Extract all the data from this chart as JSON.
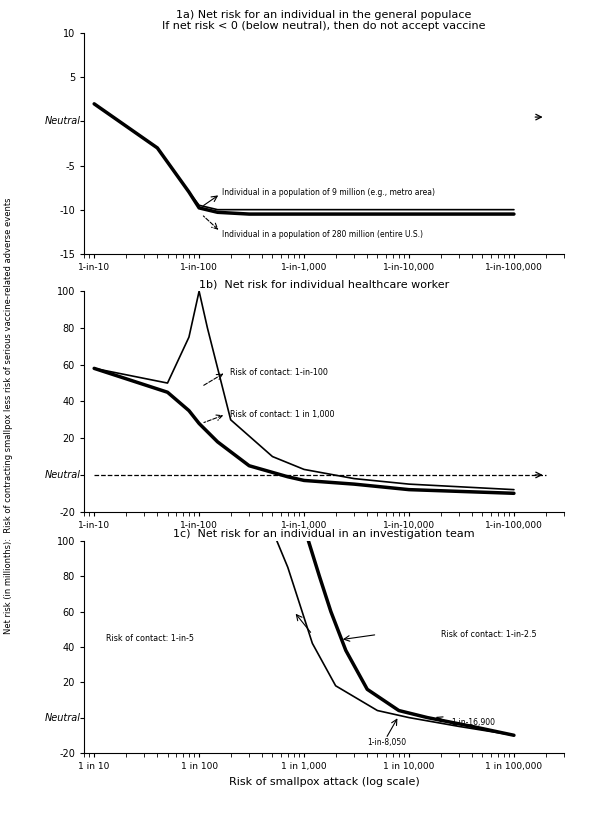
{
  "panel_a": {
    "title": "1a) Net risk for an individual in the general populace",
    "subtitle": "If net risk < 0 (below neutral), then do not accept vaccine",
    "ylim": [
      -15,
      10
    ],
    "yticks": [
      -15,
      -10,
      -5,
      0,
      5,
      10
    ],
    "ytick_labels": [
      "-15",
      "-10",
      "-5",
      "",
      "5",
      "10"
    ],
    "xlim_log": [
      8,
      300000
    ],
    "xticks": [
      10,
      100,
      1000,
      10000,
      100000
    ],
    "xtick_labels": [
      "1-in-10",
      "1-in-100",
      "1-in-1,000",
      "1-in-10,000",
      "1-in-100,000"
    ],
    "line_9mil_x": [
      10,
      40,
      80,
      100,
      150,
      300,
      1000,
      10000,
      100000
    ],
    "line_9mil_y": [
      2.0,
      -3.0,
      -8.0,
      -9.5,
      -10.0,
      -10.0,
      -10.0,
      -10.0,
      -10.0
    ],
    "line_9mil_lw": 1.2,
    "line_280mil_x": [
      10,
      40,
      80,
      100,
      150,
      300,
      1000,
      10000,
      100000
    ],
    "line_280mil_y": [
      2.0,
      -3.0,
      -8.0,
      -9.8,
      -10.3,
      -10.5,
      -10.5,
      -10.5,
      -10.5
    ],
    "line_280mil_lw": 2.5,
    "neutral_y": 0,
    "label_9mil": "Individual in a population of 9 million (e.g., metro area)",
    "label_280mil": "Individual in a population of 280 million (entire U.S.)"
  },
  "panel_b": {
    "title": "1b)  Net risk for individual healthcare worker",
    "ylim": [
      -20,
      100
    ],
    "yticks": [
      -20,
      0,
      20,
      40,
      60,
      80,
      100
    ],
    "ytick_labels": [
      "-20",
      "",
      "20",
      "40",
      "60",
      "80",
      "100"
    ],
    "xlim_log": [
      8,
      300000
    ],
    "xticks": [
      10,
      100,
      1000,
      10000,
      100000
    ],
    "xtick_labels": [
      "1-in-10",
      "1-in-100",
      "1-in-1,000",
      "1-in-10,000",
      "1-in-100,000"
    ],
    "line_c100_x": [
      10,
      50,
      80,
      100,
      120,
      200,
      500,
      1000,
      3000,
      10000,
      100000
    ],
    "line_c100_y": [
      58,
      50,
      75,
      100,
      80,
      30,
      10,
      3,
      -2,
      -5,
      -8
    ],
    "line_c100_lw": 1.2,
    "line_c1000_x": [
      10,
      50,
      80,
      100,
      150,
      300,
      700,
      1000,
      3000,
      10000,
      100000
    ],
    "line_c1000_y": [
      58,
      45,
      35,
      28,
      18,
      5,
      -1,
      -3,
      -5,
      -8,
      -10
    ],
    "line_c1000_lw": 2.5,
    "neutral_y": 0,
    "label_c100": "Risk of contact: 1-in-100",
    "label_c1000": "Risk of contact: 1 in 1,000"
  },
  "panel_c": {
    "title": "1c)  Net risk for an individual in an investigation team",
    "ylim": [
      -20,
      100
    ],
    "yticks": [
      -20,
      0,
      20,
      40,
      60,
      80,
      100
    ],
    "ytick_labels": [
      "-20",
      "",
      "20",
      "40",
      "60",
      "80",
      "100"
    ],
    "xlim_log": [
      8,
      300000
    ],
    "xticks": [
      10,
      100,
      1000,
      10000,
      100000
    ],
    "xtick_labels": [
      "1 in 10",
      "1 in 100",
      "1 in 1,000",
      "1 in 10,000",
      "1 in 100,000"
    ],
    "line_c5_x": [
      550,
      700,
      900,
      1200,
      2000,
      5000,
      10000,
      30000,
      100000
    ],
    "line_c5_y": [
      100,
      85,
      65,
      42,
      18,
      4,
      0,
      -5,
      -10
    ],
    "line_c5_lw": 1.2,
    "line_c25_x": [
      1100,
      1400,
      1800,
      2500,
      4000,
      8000,
      15000,
      40000,
      100000
    ],
    "line_c25_y": [
      100,
      80,
      60,
      38,
      16,
      4,
      0,
      -5,
      -10
    ],
    "line_c25_lw": 2.5,
    "neutral_y": 0,
    "label_c5": "Risk of contact: 1-in-5",
    "label_c25": "Risk of contact: 1-in-2.5",
    "label_8050": "1-in-8,050",
    "label_16900": "1-in-16,900",
    "xlabel": "Risk of smallpox attack (log scale)"
  },
  "ylabel": "Net risk (in millionths):  Risk of contracting smallpox less risk of serious vaccine-related adverse events",
  "bg_color": "#ffffff",
  "line_color": "#000000"
}
